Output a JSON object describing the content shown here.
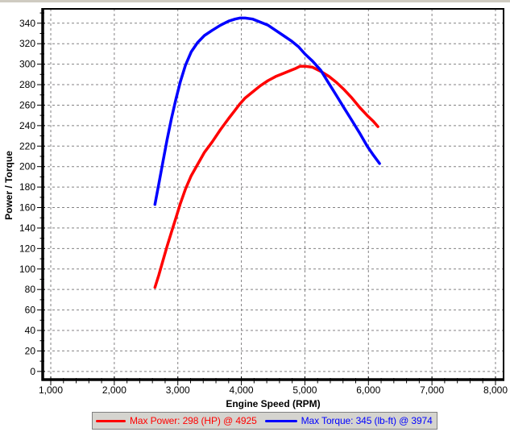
{
  "window": {
    "top_strip_color": "#cfcbc1",
    "background": "#ffffff"
  },
  "chart_data": {
    "type": "line",
    "title": "",
    "xlabel": "Engine Speed (RPM)",
    "ylabel": "Power / Torque",
    "ylabel_color": "#ff0000",
    "axes": {
      "x": {
        "range": [
          873,
          8127
        ],
        "major_tick_values": [
          1000,
          2000,
          3000,
          4000,
          5000,
          6000,
          7000,
          8000
        ],
        "major_tick_labels": [
          "1,000",
          "2,000",
          "3,000",
          "4,000",
          "5,000",
          "6,000",
          "7,000",
          "8,000"
        ],
        "minor_step": 200
      },
      "y": {
        "range": [
          -8,
          354
        ],
        "major_tick_values": [
          0,
          20,
          40,
          60,
          80,
          100,
          120,
          140,
          160,
          180,
          200,
          220,
          240,
          260,
          280,
          300,
          320,
          340
        ],
        "minor_step": 10
      }
    },
    "grid": {
      "color": "#848284",
      "dash": "3,3"
    },
    "legend_position": "bottom",
    "series": [
      {
        "name": "power",
        "legend_label": "Max Power: 298 (HP) @ 4925",
        "color": "#ff0000",
        "max": {
          "value": 298,
          "unit": "HP",
          "rpm": 4925
        },
        "points": [
          [
            2640,
            82
          ],
          [
            2700,
            94
          ],
          [
            2760,
            107
          ],
          [
            2830,
            122
          ],
          [
            2900,
            136
          ],
          [
            2970,
            150
          ],
          [
            3040,
            164
          ],
          [
            3120,
            178
          ],
          [
            3210,
            191
          ],
          [
            3310,
            202
          ],
          [
            3420,
            214
          ],
          [
            3540,
            224
          ],
          [
            3670,
            236
          ],
          [
            3800,
            247
          ],
          [
            3900,
            255
          ],
          [
            3974,
            261
          ],
          [
            4060,
            267
          ],
          [
            4180,
            273
          ],
          [
            4300,
            279
          ],
          [
            4420,
            284
          ],
          [
            4540,
            288
          ],
          [
            4660,
            291
          ],
          [
            4780,
            294
          ],
          [
            4860,
            296
          ],
          [
            4925,
            298
          ],
          [
            5000,
            298
          ],
          [
            5120,
            297
          ],
          [
            5250,
            293
          ],
          [
            5380,
            288
          ],
          [
            5500,
            282
          ],
          [
            5620,
            275
          ],
          [
            5740,
            267
          ],
          [
            5860,
            258
          ],
          [
            5980,
            250
          ],
          [
            6080,
            244
          ],
          [
            6150,
            239
          ]
        ]
      },
      {
        "name": "torque",
        "legend_label": "Max Torque: 345 (lb-ft) @ 3974",
        "color": "#0000ff",
        "max": {
          "value": 345,
          "unit": "lb-ft",
          "rpm": 3974
        },
        "points": [
          [
            2640,
            163
          ],
          [
            2700,
            183
          ],
          [
            2760,
            203
          ],
          [
            2830,
            226
          ],
          [
            2900,
            247
          ],
          [
            2970,
            266
          ],
          [
            3040,
            283
          ],
          [
            3120,
            299
          ],
          [
            3210,
            312
          ],
          [
            3310,
            321
          ],
          [
            3420,
            328
          ],
          [
            3540,
            333
          ],
          [
            3670,
            338
          ],
          [
            3800,
            342
          ],
          [
            3900,
            344
          ],
          [
            3974,
            345
          ],
          [
            4060,
            345
          ],
          [
            4180,
            344
          ],
          [
            4300,
            341
          ],
          [
            4420,
            338
          ],
          [
            4540,
            333
          ],
          [
            4660,
            328
          ],
          [
            4780,
            323
          ],
          [
            4900,
            317
          ],
          [
            5000,
            310
          ],
          [
            5120,
            303
          ],
          [
            5250,
            294
          ],
          [
            5380,
            281
          ],
          [
            5500,
            269
          ],
          [
            5620,
            257
          ],
          [
            5740,
            245
          ],
          [
            5860,
            233
          ],
          [
            5980,
            220
          ],
          [
            6080,
            211
          ],
          [
            6175,
            203
          ]
        ]
      }
    ]
  }
}
